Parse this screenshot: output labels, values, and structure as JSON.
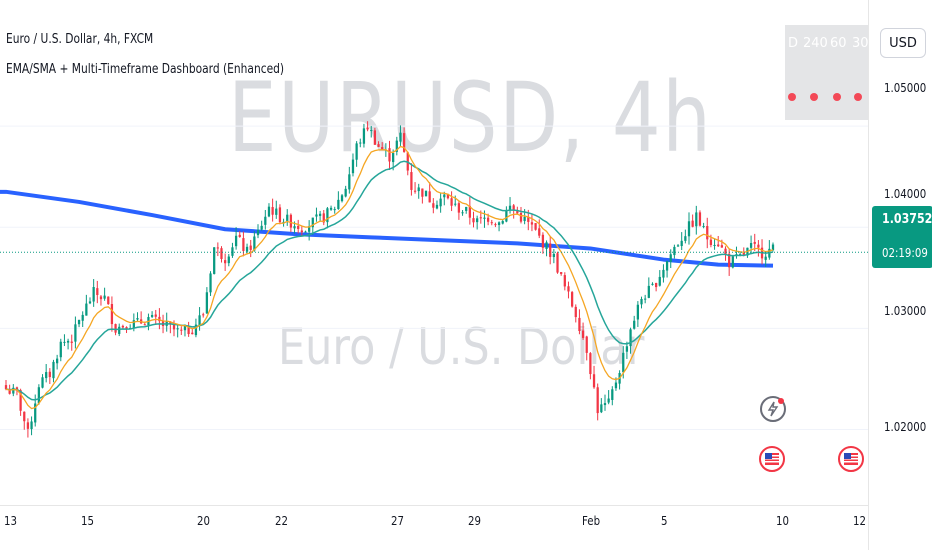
{
  "header": {
    "symbol_line": "Euro / U.S. Dollar, 4h, FXCM",
    "indicator_line": "EMA/SMA + Multi-Timeframe Dashboard (Enhanced)"
  },
  "watermark": {
    "main": "EURUSD, 4h",
    "sub": "Euro / U.S. Dollar"
  },
  "dashboard": {
    "headers": [
      "D",
      "240",
      "60",
      "30"
    ],
    "signal_color": "#f23645"
  },
  "price_axis": {
    "currency_button": "USD",
    "labels": [
      "1.05000",
      "1.04000",
      "1.03000",
      "1.02000"
    ],
    "current_price": "1.03752",
    "countdown": "02:19:09"
  },
  "time_axis": {
    "labels": [
      "13",
      "15",
      "20",
      "22",
      "27",
      "29",
      "Feb",
      "5",
      "10",
      "12"
    ]
  },
  "colors": {
    "up": "#089981",
    "down": "#f23645",
    "ema_fast": "#f5a623",
    "ema_slow": "#26a69a",
    "sma_long": "#2962ff"
  },
  "events": [
    {
      "icon": "lightning-icon"
    },
    {
      "icon": "us-flag-icon"
    },
    {
      "icon": "us-flag-icon"
    }
  ],
  "chart_data": {
    "type": "candlestick",
    "title": "Euro / U.S. Dollar, 4h, FXCM",
    "ylim": [
      1.0155,
      1.0595
    ],
    "x_tick_labels": [
      "13",
      "15",
      "20",
      "22",
      "27",
      "29",
      "Feb",
      "5",
      "10",
      "12"
    ],
    "y_tick_labels": [
      "1.05000",
      "1.04000",
      "1.03000",
      "1.02000"
    ],
    "close_path": [
      [
        0,
        1.024
      ],
      [
        3,
        1.0235
      ],
      [
        6,
        1.0195
      ],
      [
        9,
        1.0245
      ],
      [
        12,
        1.0255
      ],
      [
        15,
        1.0285
      ],
      [
        18,
        1.029
      ],
      [
        21,
        1.0315
      ],
      [
        24,
        1.0335
      ],
      [
        27,
        1.033
      ],
      [
        30,
        1.03
      ],
      [
        33,
        1.0305
      ],
      [
        36,
        1.0305
      ],
      [
        39,
        1.031
      ],
      [
        42,
        1.0305
      ],
      [
        45,
        1.03
      ],
      [
        48,
        1.0295
      ],
      [
        51,
        1.03
      ],
      [
        54,
        1.0315
      ],
      [
        57,
        1.038
      ],
      [
        60,
        1.037
      ],
      [
        63,
        1.039
      ],
      [
        66,
        1.0375
      ],
      [
        69,
        1.0395
      ],
      [
        72,
        1.042
      ],
      [
        75,
        1.041
      ],
      [
        78,
        1.0405
      ],
      [
        81,
        1.04
      ],
      [
        84,
        1.0405
      ],
      [
        87,
        1.041
      ],
      [
        90,
        1.042
      ],
      [
        93,
        1.044
      ],
      [
        96,
        1.048
      ],
      [
        99,
        1.05
      ],
      [
        102,
        1.048
      ],
      [
        105,
        1.047
      ],
      [
        108,
        1.049
      ],
      [
        111,
        1.044
      ],
      [
        114,
        1.0435
      ],
      [
        117,
        1.0425
      ],
      [
        120,
        1.043
      ],
      [
        123,
        1.042
      ],
      [
        126,
        1.0415
      ],
      [
        129,
        1.0405
      ],
      [
        132,
        1.041
      ],
      [
        135,
        1.0405
      ],
      [
        138,
        1.042
      ],
      [
        141,
        1.041
      ],
      [
        144,
        1.04
      ],
      [
        147,
        1.0385
      ],
      [
        150,
        1.037
      ],
      [
        153,
        1.034
      ],
      [
        156,
        1.0315
      ],
      [
        159,
        1.028
      ],
      [
        162,
        1.022
      ],
      [
        165,
        1.0225
      ],
      [
        168,
        1.026
      ],
      [
        171,
        1.03
      ],
      [
        174,
        1.033
      ],
      [
        177,
        1.034
      ],
      [
        180,
        1.036
      ],
      [
        183,
        1.038
      ],
      [
        186,
        1.0395
      ],
      [
        189,
        1.041
      ],
      [
        192,
        1.039
      ],
      [
        195,
        1.0385
      ],
      [
        198,
        1.0365
      ],
      [
        201,
        1.037
      ],
      [
        204,
        1.038
      ],
      [
        207,
        1.0375
      ],
      [
        210,
        1.0378
      ]
    ],
    "series": [
      {
        "name": "EMA fast",
        "color": "#f5a623"
      },
      {
        "name": "EMA slow",
        "color": "#26a69a"
      },
      {
        "name": "SMA long",
        "color": "#2962ff"
      }
    ],
    "ema_fast_period": 9,
    "ema_slow_period": 21,
    "sma_long_path": [
      [
        0,
        1.0435
      ],
      [
        20,
        1.0425
      ],
      [
        40,
        1.0412
      ],
      [
        60,
        1.0398
      ],
      [
        80,
        1.0393
      ],
      [
        100,
        1.039
      ],
      [
        120,
        1.0387
      ],
      [
        140,
        1.0384
      ],
      [
        160,
        1.0379
      ],
      [
        180,
        1.0368
      ],
      [
        195,
        1.0363
      ],
      [
        210,
        1.0362
      ]
    ]
  }
}
